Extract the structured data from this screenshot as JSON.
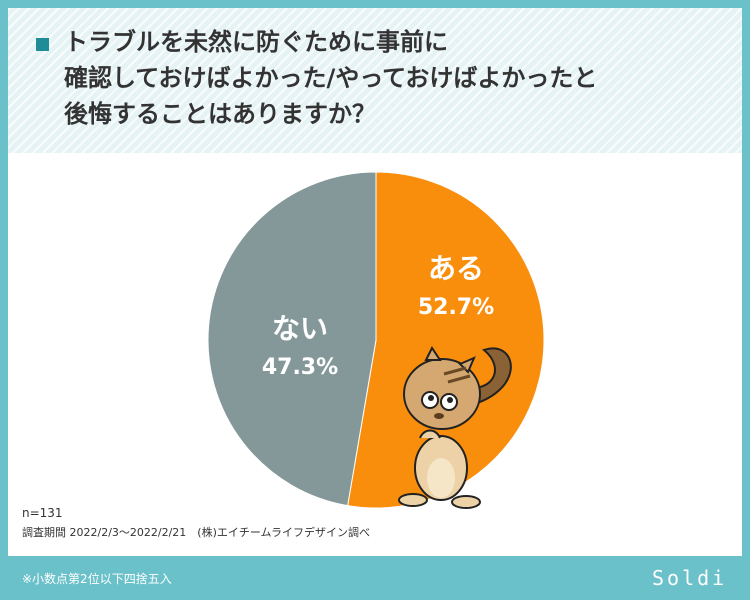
{
  "header": {
    "title": "トラブルを未然に防ぐために事前に\n確認しておけばよかった/やっておけばよかったと\n後悔することはありますか？"
  },
  "chart_data": {
    "type": "pie",
    "title": "トラブルを未然に防ぐために事前に確認しておけばよかった/やっておけばよかったと後悔することはありますか？",
    "slices": [
      {
        "label": "ある",
        "value": 52.7,
        "display": "52.7%",
        "color": "#f98e0c"
      },
      {
        "label": "ない",
        "value": 47.3,
        "display": "47.3%",
        "color": "#84989a"
      }
    ],
    "start": "12 o'clock",
    "direction": "clockwise"
  },
  "meta": {
    "sample": "n=131",
    "period": "調査期間 2022/2/3〜2022/2/21　(株)エイチームライフデザイン調べ"
  },
  "footer": {
    "note": "※小数点第2位以下四捨五入",
    "brand": "Soldi"
  }
}
